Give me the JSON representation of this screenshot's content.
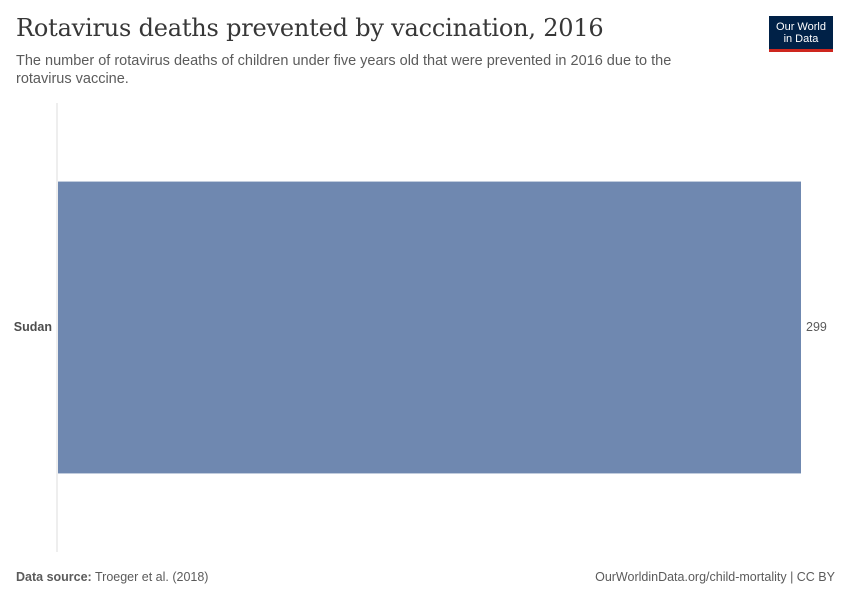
{
  "header": {
    "title": "Rotavirus deaths prevented by vaccination, 2016",
    "subtitle": "The number of rotavirus deaths of children under five years old that were prevented in 2016 due to the rotavirus vaccine.",
    "logo_line1": "Our World",
    "logo_line2": "in Data"
  },
  "footer": {
    "source_label": "Data source:",
    "source_value": "Troeger et al. (2018)",
    "link_text": "OurWorldinData.org/child-mortality | CC BY"
  },
  "colors": {
    "bar": "#6f88b0",
    "axis": "#dddddd",
    "logo_bg": "#002147",
    "logo_accent": "#ce261e"
  },
  "chart_data": {
    "type": "bar",
    "orientation": "horizontal",
    "categories": [
      "Sudan"
    ],
    "values": [
      299
    ],
    "value_labels": [
      "299"
    ],
    "xlim": [
      0,
      299
    ],
    "grid": false
  }
}
